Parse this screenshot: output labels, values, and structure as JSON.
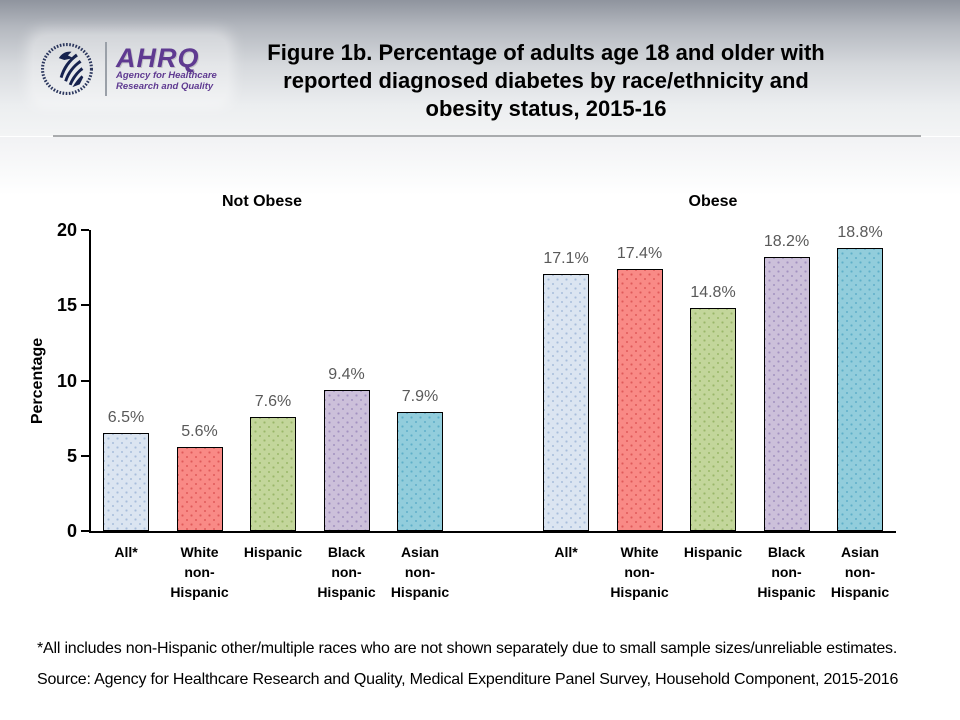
{
  "header": {
    "logo": {
      "org_abbr": "AHRQ",
      "org_line1": "Agency for Healthcare",
      "org_line2": "Research and Quality",
      "brand_color": "#5f3a91"
    },
    "title_lines": [
      "Figure 1b. Percentage of adults age 18 and older with",
      "reported diagnosed diabetes by race/ethnicity and",
      "obesity status, 2015-16"
    ]
  },
  "chart_data": {
    "type": "bar",
    "title": "Figure 1b. Percentage of adults age 18 and older with reported diagnosed diabetes by race/ethnicity and obesity status, 2015-16",
    "xlabel": "",
    "ylabel": "Percentage",
    "ylim": [
      0,
      20
    ],
    "yticks": [
      0,
      5,
      10,
      15,
      20
    ],
    "grid": false,
    "legend": "none",
    "categories": [
      "All*",
      "White non-Hispanic",
      "Hispanic",
      "Black non-Hispanic",
      "Asian non-Hispanic"
    ],
    "category_label_lines": [
      [
        "All*"
      ],
      [
        "White",
        "non-",
        "Hispanic"
      ],
      [
        "Hispanic"
      ],
      [
        "Black",
        "non-",
        "Hispanic"
      ],
      [
        "Asian",
        "non-",
        "Hispanic"
      ]
    ],
    "series": [
      {
        "name": "Not Obese",
        "values": [
          6.5,
          5.6,
          7.6,
          9.4,
          7.9
        ],
        "data_labels": [
          "6.5%",
          "5.6%",
          "7.6%",
          "9.4%",
          "7.9%"
        ]
      },
      {
        "name": "Obese",
        "values": [
          17.1,
          17.4,
          14.8,
          18.2,
          18.8
        ],
        "data_labels": [
          "17.1%",
          "17.4%",
          "14.8%",
          "18.2%",
          "18.8%"
        ]
      }
    ],
    "bar_colors": [
      {
        "fill": "#dbe5f1",
        "dot": "#a7bddb"
      },
      {
        "fill": "#f98a86",
        "dot": "#df5a5a"
      },
      {
        "fill": "#c3d69b",
        "dot": "#99b768"
      },
      {
        "fill": "#ccc0da",
        "dot": "#a291c0"
      },
      {
        "fill": "#92cddc",
        "dot": "#5fafc9"
      }
    ],
    "value_label_color": "#595959"
  },
  "footnotes": {
    "note": "*All includes non-Hispanic other/multiple races who are not shown separately due to small sample sizes/unreliable estimates.",
    "source": "Source: Agency for Healthcare Research and Quality, Medical Expenditure Panel Survey, Household Component, 2015-2016"
  }
}
